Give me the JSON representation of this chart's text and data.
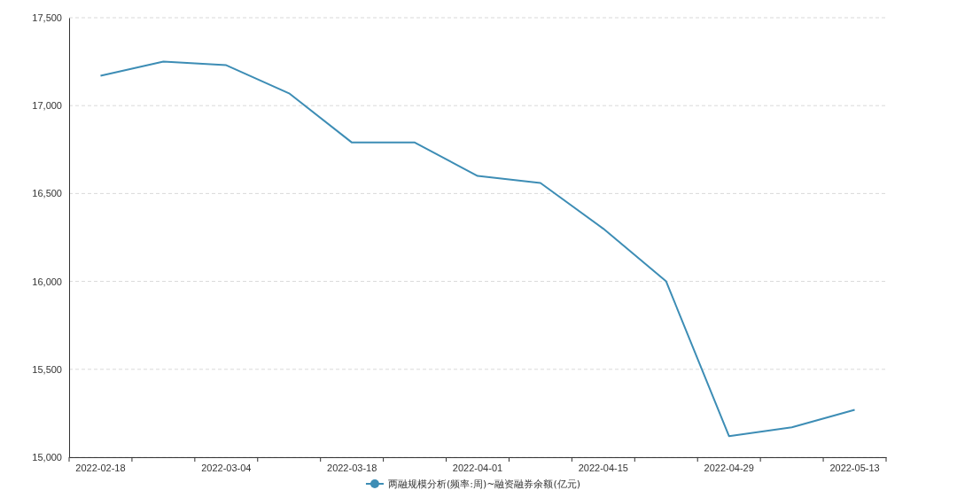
{
  "chart_data": {
    "type": "line",
    "categories": [
      "2022-02-18",
      null,
      "2022-03-04",
      null,
      "2022-03-18",
      null,
      "2022-04-01",
      null,
      "2022-04-15",
      null,
      "2022-04-29",
      null,
      "2022-05-13"
    ],
    "series": [
      {
        "name": "两融规模分析(频率:周)~融资融券余额(亿元)",
        "color": "#3d8db5",
        "values": [
          17170,
          17250,
          17230,
          17070,
          16790,
          16790,
          16600,
          16560,
          16300,
          16000,
          15120,
          15170,
          15270
        ]
      }
    ],
    "ylim": [
      15000,
      17500
    ],
    "yticks": [
      {
        "value": 15000,
        "label": "15,000"
      },
      {
        "value": 15500,
        "label": "15,500"
      },
      {
        "value": 16000,
        "label": "16,000"
      },
      {
        "value": 16500,
        "label": "16,500"
      },
      {
        "value": 17000,
        "label": "17,000"
      },
      {
        "value": 17500,
        "label": "17,500"
      }
    ],
    "grid": "y",
    "legend": "bottom",
    "marker": "none",
    "line_style": "solid"
  }
}
